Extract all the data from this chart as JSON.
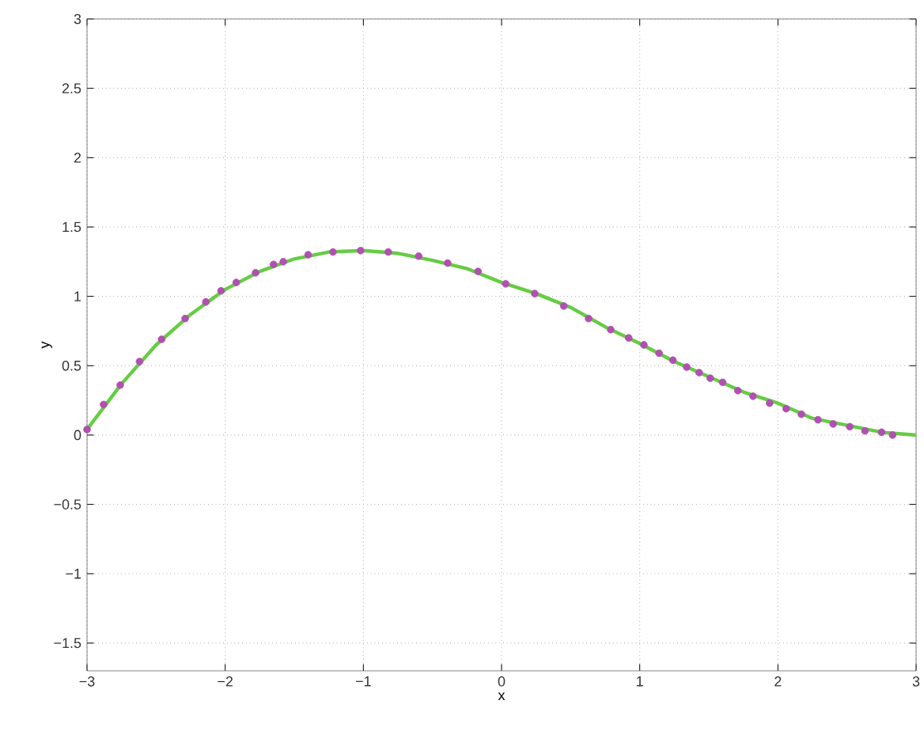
{
  "chart_data": {
    "type": "line",
    "xlabel": "x",
    "ylabel": "y",
    "xlim": [
      -3,
      3
    ],
    "ylim": [
      -1.7,
      3
    ],
    "xticks": [
      {
        "value": -3,
        "label": "−3"
      },
      {
        "value": -2,
        "label": "−2"
      },
      {
        "value": -1,
        "label": "−1"
      },
      0,
      1,
      2,
      3
    ],
    "yticks": [
      {
        "value": -1.5,
        "label": "−1.5"
      },
      {
        "value": -1,
        "label": "−1"
      },
      {
        "value": -0.5,
        "label": "−0.5"
      },
      0,
      0.5,
      1,
      1.5,
      2,
      2.5,
      3
    ],
    "grid": true,
    "series": [
      {
        "color": "#66cc44",
        "marker": "none",
        "x": [
          -3,
          -2.75,
          -2.5,
          -2.25,
          -2,
          -1.75,
          -1.5,
          -1.25,
          -1,
          -0.75,
          -0.5,
          -0.25,
          0,
          0.25,
          0.5,
          0.75,
          1,
          1.25,
          1.5,
          1.75,
          2,
          2.25,
          2.5,
          2.75,
          3
        ],
        "values": [
          0.04,
          0.37,
          0.65,
          0.87,
          1.05,
          1.18,
          1.27,
          1.32,
          1.33,
          1.31,
          1.26,
          1.2,
          1.1,
          1.02,
          0.92,
          0.78,
          0.66,
          0.53,
          0.42,
          0.31,
          0.23,
          0.12,
          0.07,
          0.02,
          0.0
        ]
      },
      {
        "type": "scatter",
        "color": "#b050b0",
        "marker": "circle",
        "x": [
          -3,
          -2.88,
          -2.76,
          -2.62,
          -2.46,
          -2.29,
          -2.14,
          -2.03,
          -1.92,
          -1.78,
          -1.65,
          -1.58,
          -1.4,
          -1.22,
          -1.02,
          -0.82,
          -0.6,
          -0.39,
          -0.17,
          0.03,
          0.24,
          0.45,
          0.63,
          0.79,
          0.92,
          1.03,
          1.14,
          1.24,
          1.34,
          1.43,
          1.51,
          1.6,
          1.71,
          1.82,
          1.94,
          2.06,
          2.17,
          2.29,
          2.4,
          2.52,
          2.63,
          2.75,
          2.83
        ],
        "values": [
          0.04,
          0.22,
          0.36,
          0.53,
          0.69,
          0.84,
          0.96,
          1.04,
          1.1,
          1.17,
          1.23,
          1.25,
          1.3,
          1.32,
          1.33,
          1.32,
          1.29,
          1.24,
          1.18,
          1.09,
          1.02,
          0.93,
          0.84,
          0.76,
          0.7,
          0.65,
          0.59,
          0.54,
          0.49,
          0.45,
          0.41,
          0.38,
          0.32,
          0.28,
          0.23,
          0.19,
          0.15,
          0.11,
          0.08,
          0.06,
          0.03,
          0.02,
          0.0
        ]
      }
    ]
  }
}
